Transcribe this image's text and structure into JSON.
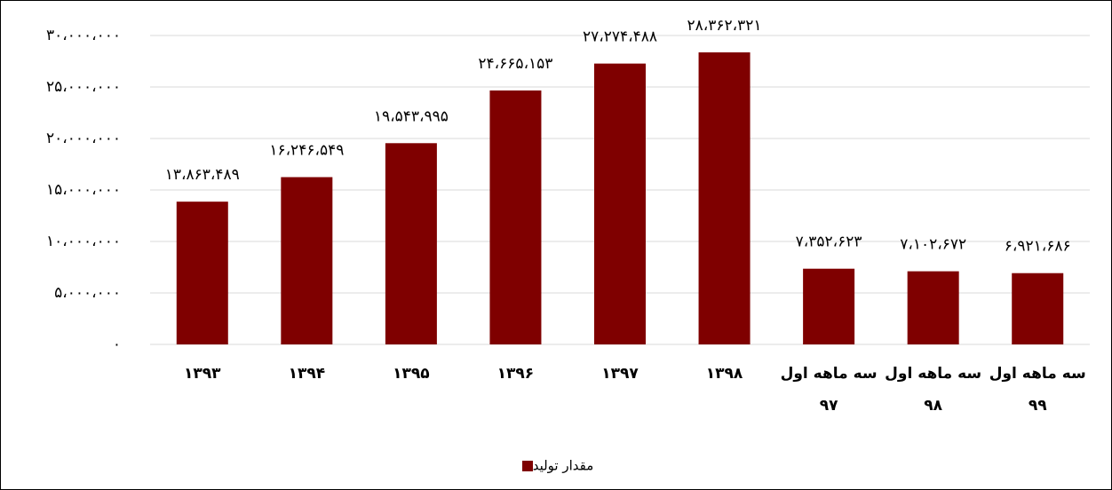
{
  "chart_data": {
    "type": "bar",
    "categories": [
      "۱۳۹۳",
      "۱۳۹۴",
      "۱۳۹۵",
      "۱۳۹۶",
      "۱۳۹۷",
      "۱۳۹۸",
      "سه ماهه اول ۹۷",
      "سه ماهه اول ۹۸",
      "سه ماهه اول ۹۹"
    ],
    "series": [
      {
        "name": "مقدار تولید",
        "color": "#7f0000",
        "values": [
          13863489,
          16246549,
          19543995,
          24665153,
          27274488,
          28362321,
          7352623,
          7102672,
          6921686
        ],
        "value_labels": [
          "۱۳،۸۶۳،۴۸۹",
          "۱۶،۲۴۶،۵۴۹",
          "۱۹،۵۴۳،۹۹۵",
          "۲۴،۶۶۵،۱۵۳",
          "۲۷،۲۷۴،۴۸۸",
          "۲۸،۳۶۲،۳۲۱",
          "۷،۳۵۲،۶۲۳",
          "۷،۱۰۲،۶۷۲",
          "۶،۹۲۱،۶۸۶"
        ]
      }
    ],
    "ylim": [
      0,
      30000000
    ],
    "yticks": [
      {
        "value": 0,
        "label": "۰"
      },
      {
        "value": 5000000,
        "label": "۵،۰۰۰،۰۰۰"
      },
      {
        "value": 10000000,
        "label": "۱۰،۰۰۰،۰۰۰"
      },
      {
        "value": 15000000,
        "label": "۱۵،۰۰۰،۰۰۰"
      },
      {
        "value": 20000000,
        "label": "۲۰،۰۰۰،۰۰۰"
      },
      {
        "value": 25000000,
        "label": "۲۵،۰۰۰،۰۰۰"
      },
      {
        "value": 30000000,
        "label": "۳۰،۰۰۰،۰۰۰"
      }
    ],
    "grid": true,
    "legend": "bottom"
  }
}
